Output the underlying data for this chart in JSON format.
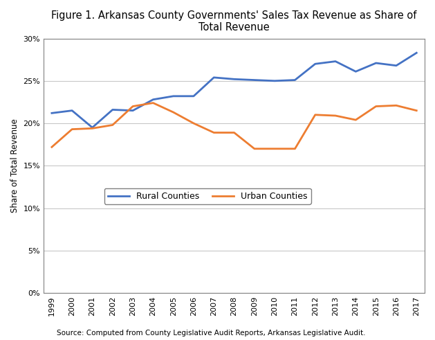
{
  "title": "Figure 1. Arkansas County Governments' Sales Tax Revenue as Share of\nTotal Revenue",
  "ylabel": "Share of Total Revenue",
  "source": "Source: Computed from County Legislative Audit Reports, Arkansas Legislative Audit.",
  "years": [
    1999,
    2000,
    2001,
    2002,
    2003,
    2004,
    2005,
    2006,
    2007,
    2008,
    2009,
    2010,
    2011,
    2012,
    2013,
    2014,
    2015,
    2016,
    2017
  ],
  "rural": [
    0.212,
    0.215,
    0.195,
    0.216,
    0.215,
    0.228,
    0.232,
    0.232,
    0.254,
    0.252,
    0.251,
    0.25,
    0.251,
    0.27,
    0.273,
    0.261,
    0.271,
    0.268,
    0.283
  ],
  "urban": [
    0.172,
    0.193,
    0.194,
    0.198,
    0.22,
    0.224,
    0.213,
    0.2,
    0.189,
    0.189,
    0.17,
    0.17,
    0.17,
    0.21,
    0.209,
    0.204,
    0.22,
    0.221,
    0.215
  ],
  "rural_color": "#4472C4",
  "urban_color": "#ED7D31",
  "rural_label": "Rural Counties",
  "urban_label": "Urban Counties",
  "ylim": [
    0.0,
    0.3
  ],
  "yticks": [
    0.0,
    0.05,
    0.1,
    0.15,
    0.2,
    0.25,
    0.3
  ],
  "background_color": "#ffffff",
  "grid_color": "#c8c8c8",
  "line_width": 2.0,
  "title_fontsize": 10.5,
  "axis_label_fontsize": 8.5,
  "tick_fontsize": 8,
  "legend_fontsize": 9,
  "source_fontsize": 7.5
}
